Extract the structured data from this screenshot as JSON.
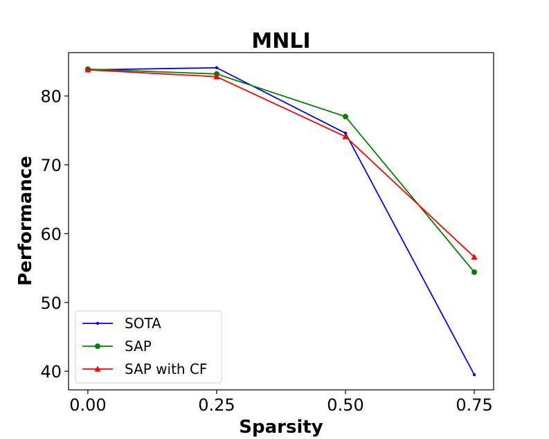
{
  "chart_data": {
    "type": "line",
    "title": "MNLI",
    "xlabel": "Sparsity",
    "ylabel": "Performance",
    "x": [
      0.0,
      0.25,
      0.5,
      0.75
    ],
    "xticks": [
      "0.00",
      "0.25",
      "0.50",
      "0.75"
    ],
    "yticks": [
      "40",
      "50",
      "60",
      "70",
      "80"
    ],
    "ytick_values": [
      40,
      50,
      60,
      70,
      80
    ],
    "xlim": [
      -0.0375,
      0.7875
    ],
    "ylim": [
      37.3,
      86.3
    ],
    "grid": false,
    "legend_position": "lower-left",
    "series": [
      {
        "name": "SOTA",
        "color": "#0000ff",
        "marker": "point",
        "values": [
          83.8,
          84.1,
          74.6,
          39.5
        ]
      },
      {
        "name": "SAP",
        "color": "#008000",
        "marker": "circle",
        "values": [
          83.9,
          83.2,
          77.0,
          54.4
        ]
      },
      {
        "name": "SAP with CF",
        "color": "#ff0000",
        "marker": "triangle",
        "values": [
          83.8,
          82.8,
          74.1,
          56.6
        ]
      }
    ]
  }
}
